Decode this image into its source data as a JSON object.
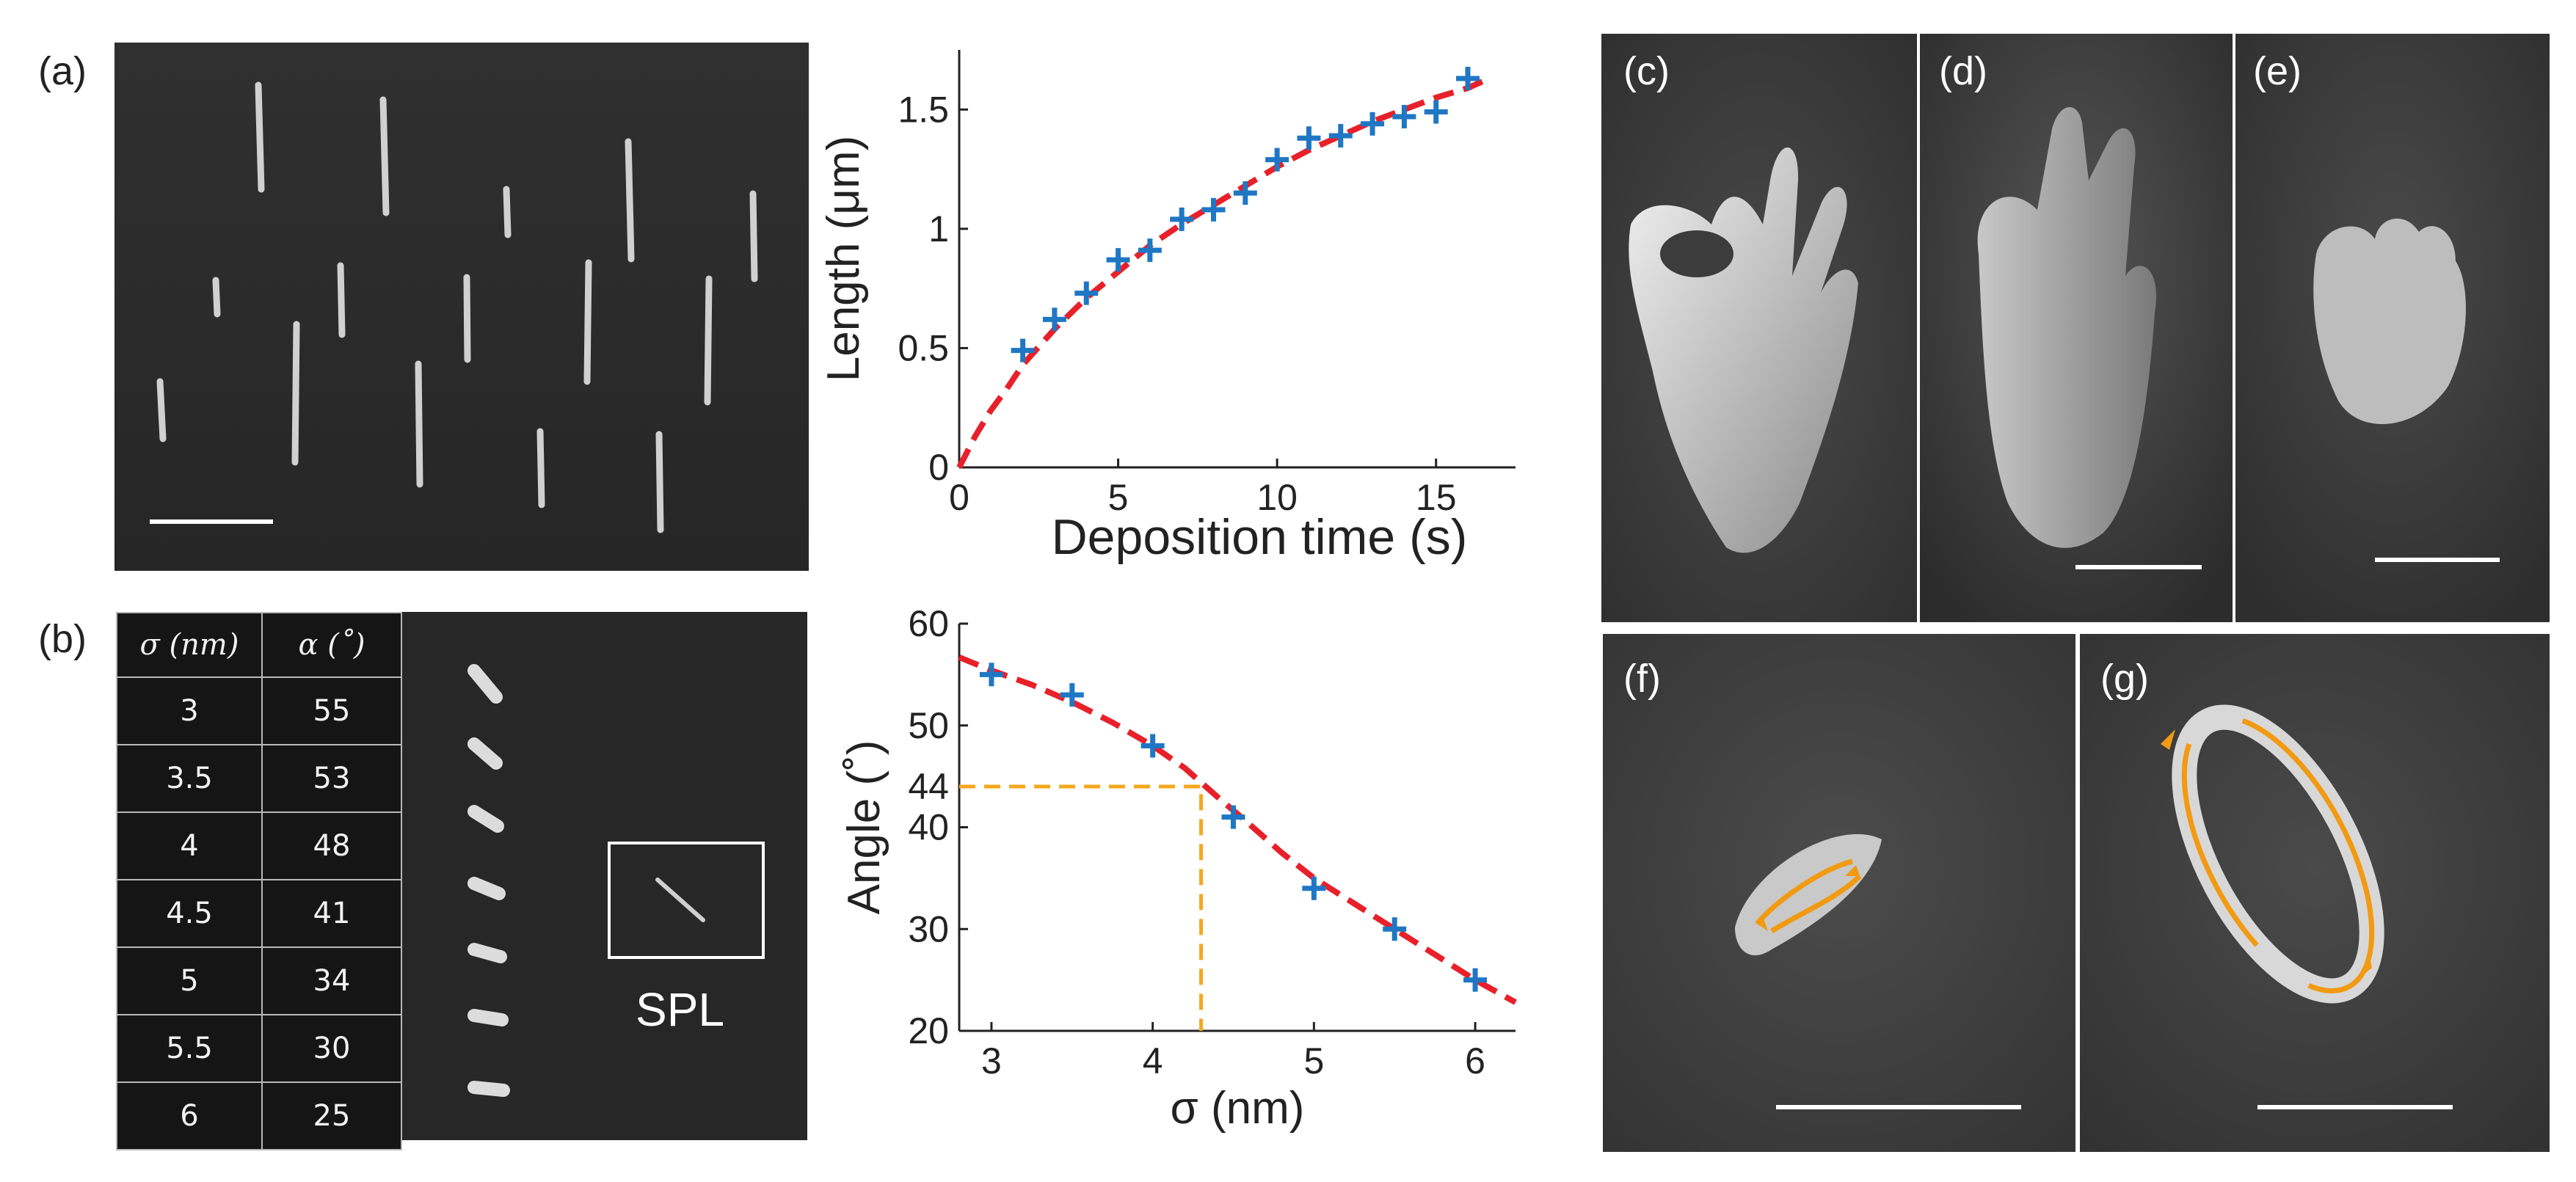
{
  "panels": {
    "a": "(a)",
    "b": "(b)",
    "c": "(c)",
    "d": "(d)",
    "e": "(e)",
    "f": "(f)",
    "g": "(g)"
  },
  "spl_label": "SPL",
  "table": {
    "headers": [
      "σ (nm)",
      "α (˚)"
    ],
    "rows": [
      [
        "3",
        "55"
      ],
      [
        "3.5",
        "53"
      ],
      [
        "4",
        "48"
      ],
      [
        "4.5",
        "41"
      ],
      [
        "5",
        "34"
      ],
      [
        "5.5",
        "30"
      ],
      [
        "6",
        "25"
      ]
    ]
  },
  "colors": {
    "marker": "#1f77c4",
    "fit": "#e8202a",
    "guide": "#f5a81e",
    "arrow": "#f29a12"
  },
  "chart_data": [
    {
      "type": "scatter",
      "title": "",
      "xlabel": "Deposition time (s)",
      "ylabel": "Length (μm)",
      "xlim": [
        0,
        17.5
      ],
      "ylim": [
        0,
        1.75
      ],
      "xticks": [
        "0",
        "5",
        "10",
        "15"
      ],
      "yticks": [
        "0",
        "0.5",
        "1",
        "1.5"
      ],
      "series": [
        {
          "name": "measured",
          "marker": "+",
          "x": [
            2,
            3,
            4,
            5,
            6,
            7,
            8,
            9,
            10,
            11,
            12,
            13,
            14,
            15,
            16
          ],
          "y": [
            0.49,
            0.62,
            0.73,
            0.87,
            0.91,
            1.04,
            1.08,
            1.15,
            1.29,
            1.38,
            1.39,
            1.44,
            1.47,
            1.49,
            1.63
          ]
        },
        {
          "name": "fit",
          "style": "dashed",
          "x": [
            0,
            0.5,
            1,
            1.5,
            2,
            3,
            4,
            5,
            6,
            7,
            8,
            9,
            10,
            11,
            12,
            13,
            14,
            15,
            16,
            16.5
          ],
          "y": [
            0,
            0.13,
            0.24,
            0.33,
            0.43,
            0.58,
            0.71,
            0.82,
            0.93,
            1.02,
            1.1,
            1.18,
            1.26,
            1.33,
            1.39,
            1.45,
            1.5,
            1.55,
            1.59,
            1.62
          ]
        }
      ]
    },
    {
      "type": "scatter",
      "title": "",
      "xlabel": "σ (nm)",
      "ylabel": "Angle (˚)",
      "xlim": [
        2.8,
        6.25
      ],
      "ylim": [
        20,
        60
      ],
      "xticks": [
        "3",
        "4",
        "5",
        "6"
      ],
      "yticks": [
        "20",
        "30",
        "40",
        "44",
        "50",
        "60"
      ],
      "guide": {
        "x": 4.3,
        "y": 44
      },
      "series": [
        {
          "name": "measured",
          "marker": "+",
          "x": [
            3,
            3.5,
            4,
            4.5,
            5,
            5.5,
            6
          ],
          "y": [
            55,
            53,
            48,
            41,
            34,
            30,
            25
          ]
        },
        {
          "name": "fit",
          "style": "dashed",
          "x": [
            2.8,
            3,
            3.25,
            3.5,
            3.75,
            4,
            4.2,
            4.4,
            4.6,
            4.8,
            5,
            5.25,
            5.5,
            5.75,
            6,
            6.25
          ],
          "y": [
            56.7,
            55.4,
            54,
            52.3,
            50.3,
            48,
            45.8,
            43,
            40.3,
            37.5,
            35,
            32.5,
            30,
            27.5,
            25,
            22.8
          ]
        }
      ]
    }
  ]
}
